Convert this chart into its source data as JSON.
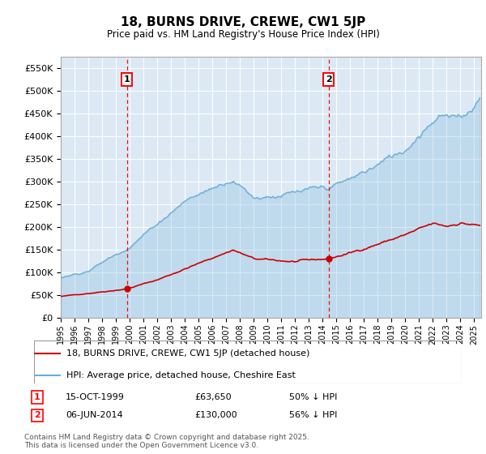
{
  "title": "18, BURNS DRIVE, CREWE, CW1 5JP",
  "subtitle": "Price paid vs. HM Land Registry's House Price Index (HPI)",
  "ylabel_ticks": [
    "£0",
    "£50K",
    "£100K",
    "£150K",
    "£200K",
    "£250K",
    "£300K",
    "£350K",
    "£400K",
    "£450K",
    "£500K",
    "£550K"
  ],
  "ytick_values": [
    0,
    50000,
    100000,
    150000,
    200000,
    250000,
    300000,
    350000,
    400000,
    450000,
    500000,
    550000
  ],
  "ylim": [
    0,
    575000
  ],
  "xlim_start": 1995.0,
  "xlim_end": 2025.5,
  "bg_color": "#dce9f5",
  "hpi_line_color": "#6baed6",
  "price_line_color": "#cc0000",
  "marker1_date": 1999.79,
  "marker1_price": 63650,
  "marker2_date": 2014.43,
  "marker2_price": 130000,
  "legend_line1": "18, BURNS DRIVE, CREWE, CW1 5JP (detached house)",
  "legend_line2": "HPI: Average price, detached house, Cheshire East",
  "marker1_label": "15-OCT-1999",
  "marker1_amount": "£63,650",
  "marker1_pct": "50% ↓ HPI",
  "marker2_label": "06-JUN-2014",
  "marker2_amount": "£130,000",
  "marker2_pct": "56% ↓ HPI",
  "footnote": "Contains HM Land Registry data © Crown copyright and database right 2025.\nThis data is licensed under the Open Government Licence v3.0.",
  "xtick_years": [
    "1995",
    "1996",
    "1997",
    "1998",
    "1999",
    "2000",
    "2001",
    "2002",
    "2003",
    "2004",
    "2005",
    "2006",
    "2007",
    "2008",
    "2009",
    "2010",
    "2011",
    "2012",
    "2013",
    "2014",
    "2015",
    "2016",
    "2017",
    "2018",
    "2019",
    "2020",
    "2021",
    "2022",
    "2023",
    "2024",
    "2025"
  ]
}
